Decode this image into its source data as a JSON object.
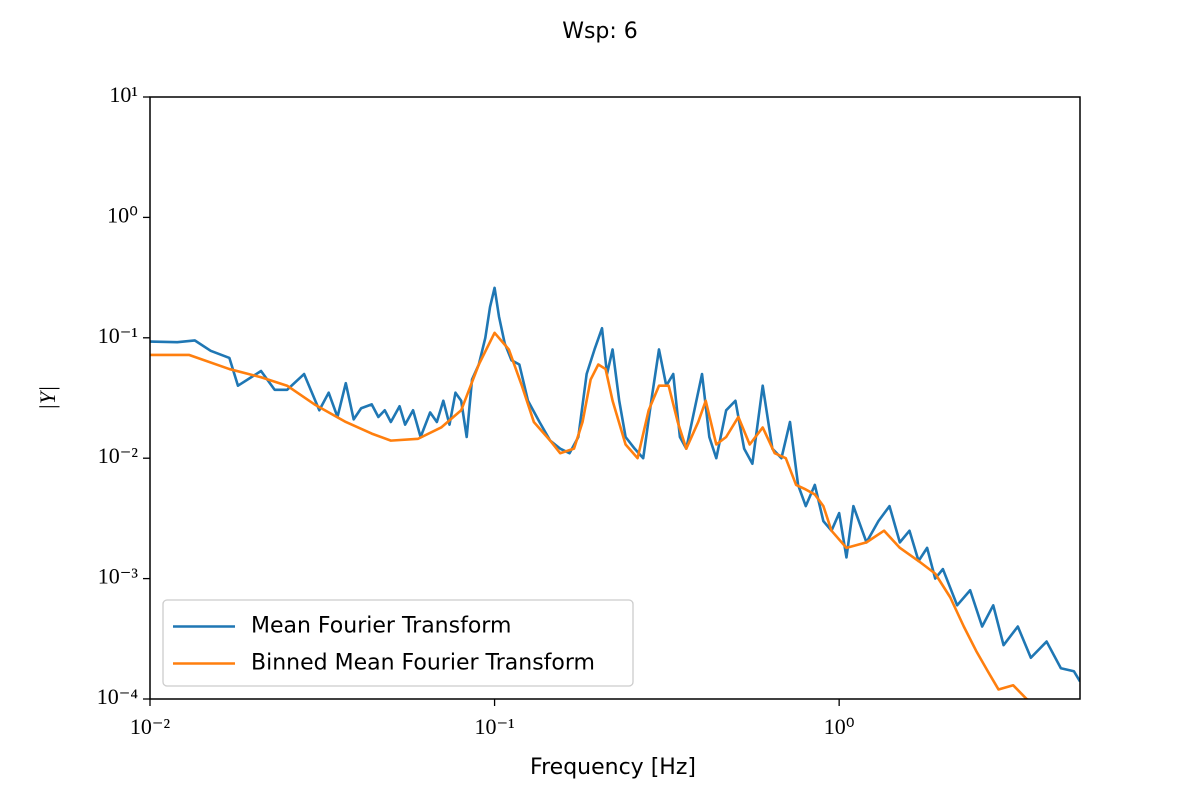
{
  "chart_data": {
    "type": "line",
    "title": "Wsp: 6",
    "x_label": "Frequency [Hz]",
    "y_label": "|Y|",
    "xscale": "log",
    "yscale": "log",
    "legend": "lower left",
    "xlim": [
      0.01,
      5
    ],
    "ylim": [
      0.0001,
      10
    ],
    "xticks": [
      {
        "value": 0.01,
        "label": "10⁻²"
      },
      {
        "value": 0.1,
        "label": "10⁻¹"
      },
      {
        "value": 1,
        "label": "10⁰"
      }
    ],
    "yticks": [
      {
        "value": 0.0001,
        "label": "10⁻⁴"
      },
      {
        "value": 0.001,
        "label": "10⁻³"
      },
      {
        "value": 0.01,
        "label": "10⁻²"
      },
      {
        "value": 0.1,
        "label": "10⁻¹"
      },
      {
        "value": 1,
        "label": "10⁰"
      },
      {
        "value": 10,
        "label": "10¹"
      }
    ],
    "series": [
      {
        "name": "Mean Fourier Transform",
        "color": "#1f77b4",
        "x": [
          0.01,
          0.012,
          0.0135,
          0.015,
          0.017,
          0.018,
          0.021,
          0.023,
          0.025,
          0.028,
          0.031,
          0.033,
          0.035,
          0.037,
          0.039,
          0.041,
          0.044,
          0.046,
          0.048,
          0.05,
          0.053,
          0.055,
          0.058,
          0.061,
          0.065,
          0.068,
          0.071,
          0.074,
          0.077,
          0.08,
          0.083,
          0.086,
          0.09,
          0.094,
          0.097,
          0.1,
          0.103,
          0.107,
          0.112,
          0.118,
          0.125,
          0.135,
          0.145,
          0.155,
          0.165,
          0.175,
          0.185,
          0.195,
          0.205,
          0.212,
          0.22,
          0.23,
          0.24,
          0.255,
          0.27,
          0.285,
          0.3,
          0.315,
          0.33,
          0.345,
          0.36,
          0.38,
          0.4,
          0.42,
          0.44,
          0.47,
          0.5,
          0.53,
          0.56,
          0.6,
          0.64,
          0.68,
          0.72,
          0.76,
          0.8,
          0.85,
          0.9,
          0.95,
          1.0,
          1.05,
          1.1,
          1.2,
          1.3,
          1.4,
          1.5,
          1.6,
          1.7,
          1.8,
          1.9,
          2.0,
          2.2,
          2.4,
          2.6,
          2.8,
          3.0,
          3.3,
          3.6,
          4.0,
          4.4,
          4.8,
          5.0
        ],
        "values": [
          0.093,
          0.092,
          0.095,
          0.078,
          0.068,
          0.04,
          0.053,
          0.037,
          0.037,
          0.05,
          0.025,
          0.035,
          0.022,
          0.042,
          0.021,
          0.026,
          0.028,
          0.022,
          0.025,
          0.02,
          0.027,
          0.019,
          0.025,
          0.015,
          0.024,
          0.02,
          0.03,
          0.019,
          0.035,
          0.03,
          0.015,
          0.045,
          0.06,
          0.1,
          0.18,
          0.26,
          0.15,
          0.09,
          0.065,
          0.06,
          0.03,
          0.02,
          0.014,
          0.012,
          0.011,
          0.015,
          0.05,
          0.08,
          0.12,
          0.05,
          0.08,
          0.03,
          0.015,
          0.012,
          0.01,
          0.03,
          0.08,
          0.04,
          0.05,
          0.015,
          0.012,
          0.025,
          0.05,
          0.015,
          0.01,
          0.025,
          0.03,
          0.012,
          0.009,
          0.04,
          0.012,
          0.01,
          0.02,
          0.006,
          0.004,
          0.006,
          0.003,
          0.0025,
          0.0035,
          0.0015,
          0.004,
          0.002,
          0.003,
          0.004,
          0.002,
          0.0025,
          0.0014,
          0.0018,
          0.001,
          0.0012,
          0.0006,
          0.0008,
          0.0004,
          0.0006,
          0.00028,
          0.0004,
          0.00022,
          0.0003,
          0.00018,
          0.00017,
          0.00014
        ]
      },
      {
        "name": "Binned Mean Fourier Transform",
        "color": "#ff7f0e",
        "x": [
          0.01,
          0.013,
          0.017,
          0.021,
          0.025,
          0.03,
          0.037,
          0.044,
          0.05,
          0.06,
          0.07,
          0.08,
          0.09,
          0.1,
          0.11,
          0.12,
          0.13,
          0.145,
          0.155,
          0.17,
          0.18,
          0.19,
          0.2,
          0.21,
          0.22,
          0.24,
          0.26,
          0.28,
          0.3,
          0.32,
          0.34,
          0.36,
          0.39,
          0.41,
          0.44,
          0.47,
          0.51,
          0.55,
          0.6,
          0.65,
          0.7,
          0.75,
          0.8,
          0.85,
          0.9,
          0.95,
          1.05,
          1.2,
          1.35,
          1.5,
          1.7,
          1.9,
          2.1,
          2.3,
          2.5,
          2.7,
          2.9,
          3.2,
          3.5,
          3.8
        ],
        "values": [
          0.072,
          0.072,
          0.055,
          0.047,
          0.04,
          0.028,
          0.02,
          0.016,
          0.014,
          0.0145,
          0.018,
          0.025,
          0.06,
          0.11,
          0.08,
          0.04,
          0.02,
          0.014,
          0.011,
          0.012,
          0.02,
          0.045,
          0.06,
          0.055,
          0.03,
          0.013,
          0.01,
          0.025,
          0.04,
          0.04,
          0.02,
          0.012,
          0.02,
          0.03,
          0.013,
          0.015,
          0.022,
          0.013,
          0.018,
          0.011,
          0.01,
          0.006,
          0.0055,
          0.005,
          0.004,
          0.0025,
          0.0018,
          0.002,
          0.0025,
          0.0018,
          0.0014,
          0.0011,
          0.0007,
          0.0004,
          0.00025,
          0.00017,
          0.00012,
          0.00013,
          0.0001,
          9e-05
        ]
      }
    ]
  }
}
